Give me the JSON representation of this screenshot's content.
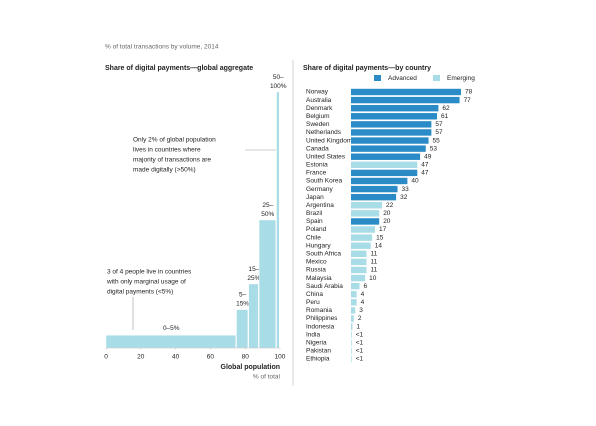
{
  "caption": "% of total transactions by volume, 2014",
  "chart_data": [
    {
      "type": "histogram",
      "title": "Share of digital payments—global aggregate",
      "bins": [
        0,
        75,
        82,
        88,
        98,
        100
      ],
      "values": [
        5,
        15,
        25,
        50,
        100
      ],
      "categories": [
        "0–5%",
        "5–15%",
        "15–25%",
        "25–50%",
        "50–100%"
      ],
      "color": "#a8dce6",
      "xlim": [
        0,
        100
      ],
      "xticks": [
        0,
        20,
        40,
        60,
        80,
        100
      ],
      "ylim": [
        0,
        100
      ],
      "xlabel": "Global population",
      "xlabel_unit": "% of total",
      "annotations": [
        {
          "lines": [
            "Only 2% of global population",
            "lives in countries where",
            "majority of transactions are",
            "made digitally (>50%)"
          ]
        },
        {
          "lines": [
            "3 of 4 people live in countries",
            "with only marginal usage of",
            "digital payments (<5%)"
          ]
        }
      ]
    },
    {
      "type": "bar",
      "orientation": "horizontal",
      "title": "Share of digital payments—by country",
      "categories": [
        "Norway",
        "Australia",
        "Denmark",
        "Belgium",
        "Sweden",
        "Netherlands",
        "United Kingdom",
        "Canada",
        "United States",
        "Estonia",
        "France",
        "South Korea",
        "Germany",
        "Japan",
        "Argentina",
        "Brazil",
        "Spain",
        "Poland",
        "Chile",
        "Hungary",
        "South Africa",
        "Mexico",
        "Russia",
        "Malaysia",
        "Saudi Arabia",
        "China",
        "Peru",
        "Romania",
        "Philippines",
        "Indonesia",
        "India",
        "Nigeria",
        "Pakistan",
        "Ethiopia"
      ],
      "xlim": [
        0,
        100
      ],
      "series": [
        {
          "name": "Advanced",
          "color": "#2a8bc6",
          "values": [
            78,
            77,
            62,
            61,
            57,
            57,
            55,
            53,
            49,
            null,
            47,
            40,
            33,
            32,
            null,
            null,
            20,
            null,
            null,
            null,
            null,
            null,
            null,
            null,
            null,
            null,
            null,
            null,
            null,
            null,
            null,
            null,
            null,
            null
          ]
        },
        {
          "name": "Emerging",
          "color": "#a8dce6",
          "values": [
            null,
            null,
            null,
            null,
            null,
            null,
            null,
            null,
            null,
            47,
            null,
            null,
            null,
            null,
            22,
            20,
            null,
            17,
            15,
            14,
            11,
            11,
            11,
            10,
            6,
            4,
            4,
            3,
            2,
            1,
            0.5,
            0.5,
            0.5,
            0.5
          ],
          "value_labels": [
            null,
            null,
            null,
            null,
            null,
            null,
            null,
            null,
            null,
            "47",
            null,
            null,
            null,
            null,
            "22",
            "20",
            null,
            "17",
            "15",
            "14",
            "11",
            "11",
            "11",
            "10",
            "6",
            "4",
            "4",
            "3",
            "2",
            "1",
            "<1",
            "<1",
            "<1",
            "<1"
          ]
        }
      ]
    }
  ]
}
